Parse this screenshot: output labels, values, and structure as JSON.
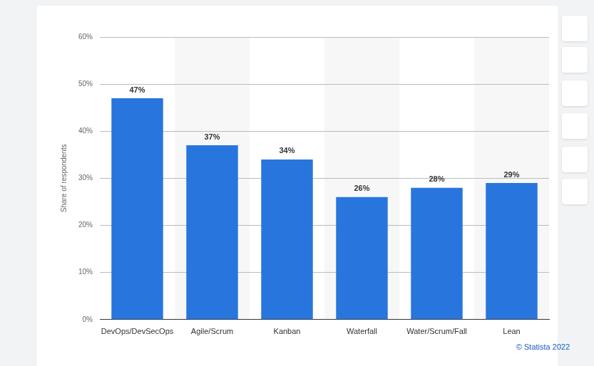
{
  "chart_data": {
    "type": "bar",
    "categories": [
      "DevOps/DevSecOps",
      "Agile/Scrum",
      "Kanban",
      "Waterfall",
      "Water/Scrum/Fall",
      "Lean"
    ],
    "values": [
      47,
      37,
      34,
      26,
      28,
      29
    ],
    "value_labels": [
      "47%",
      "37%",
      "34%",
      "26%",
      "28%",
      "29%"
    ],
    "data_labels": true,
    "color": "#2876dd",
    "y_label": "Share of respondents",
    "ylim": [
      0,
      60
    ],
    "yticks": [
      {
        "value": 0,
        "label": "0%"
      },
      {
        "value": 10,
        "label": "10%"
      },
      {
        "value": 20,
        "label": "20%"
      },
      {
        "value": 30,
        "label": "30%"
      },
      {
        "value": 40,
        "label": "40%"
      },
      {
        "value": 50,
        "label": "50%"
      },
      {
        "value": 60,
        "label": "60%"
      }
    ],
    "grid": true,
    "annotations": [
      "© Statista 2022"
    ]
  }
}
